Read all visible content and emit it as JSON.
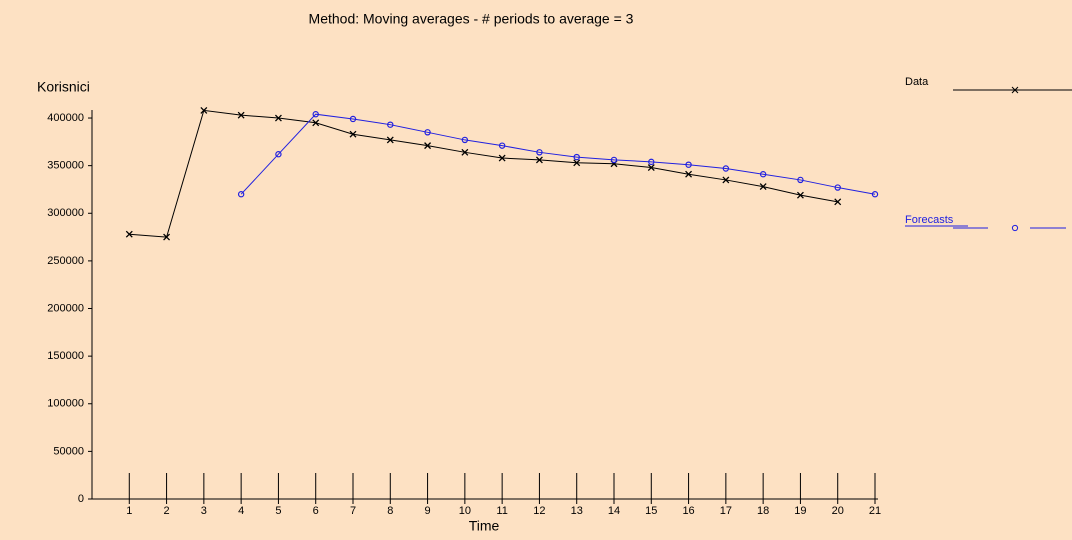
{
  "chart_data": {
    "type": "line",
    "title": "Method: Moving averages - # periods to average = 3",
    "y_label": "Korisnici",
    "x_label": "Time",
    "x": [
      1,
      2,
      3,
      4,
      5,
      6,
      7,
      8,
      9,
      10,
      11,
      12,
      13,
      14,
      15,
      16,
      17,
      18,
      19,
      20,
      21
    ],
    "series": [
      {
        "name": "Data",
        "color": "#000000",
        "marker": "x",
        "values": [
          278000,
          275000,
          408000,
          403000,
          400000,
          395000,
          383000,
          377000,
          371000,
          364000,
          358000,
          356000,
          353000,
          352000,
          348000,
          341000,
          335000,
          328000,
          319000,
          312000,
          null
        ]
      },
      {
        "name": "Forecasts",
        "color": "#2020e0",
        "marker": "o",
        "values": [
          null,
          null,
          null,
          320000,
          362000,
          404000,
          399000,
          393000,
          385000,
          377000,
          371000,
          364000,
          359000,
          356000,
          354000,
          351000,
          347000,
          341000,
          335000,
          327000,
          320000
        ]
      }
    ],
    "xlim": [
      0,
      21
    ],
    "xticks": [
      1,
      2,
      3,
      4,
      5,
      6,
      7,
      8,
      9,
      10,
      11,
      12,
      13,
      14,
      15,
      16,
      17,
      18,
      19,
      20,
      21
    ],
    "ylim": [
      0,
      410000
    ],
    "yticks": [
      0,
      50000,
      100000,
      150000,
      200000,
      250000,
      300000,
      350000,
      400000
    ],
    "grid": false
  }
}
